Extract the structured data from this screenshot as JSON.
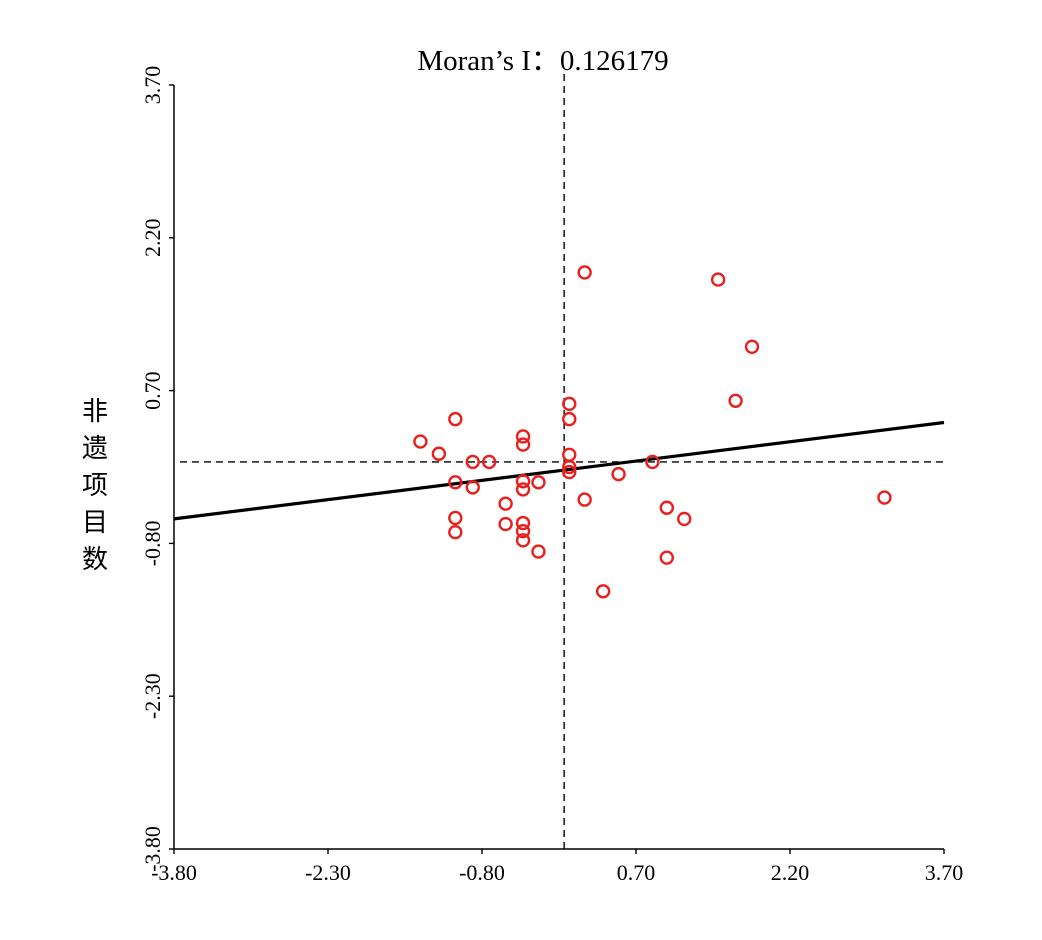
{
  "chart_data": {
    "type": "scatter",
    "title": "Moran’s I：0.126179",
    "ylabel": "非遗项目数",
    "xlabel": "",
    "xlim": [
      -3.8,
      3.7
    ],
    "ylim": [
      -3.8,
      3.7
    ],
    "x_ticks": [
      "-3.80",
      "-2.30",
      "-0.80",
      "0.70",
      "2.20",
      "3.70"
    ],
    "y_ticks": [
      "-3.80",
      "-2.30",
      "-0.80",
      "0.70",
      "2.20",
      "3.70"
    ],
    "x_tick_values": [
      -3.8,
      -2.3,
      -0.8,
      0.7,
      2.2,
      3.7
    ],
    "y_tick_values": [
      -3.8,
      -2.3,
      -0.8,
      0.7,
      2.2,
      3.7
    ],
    "mean_x": 0.0,
    "mean_y": 0.0,
    "fit_line": {
      "slope": 0.126179,
      "intercept": -0.08
    },
    "colors": {
      "points": "#e8201e",
      "line": "#000000",
      "axes": "#000000"
    },
    "points": [
      {
        "x": -1.4,
        "y": 0.2
      },
      {
        "x": -1.22,
        "y": 0.08
      },
      {
        "x": -1.06,
        "y": 0.42
      },
      {
        "x": -1.06,
        "y": -0.2
      },
      {
        "x": -1.06,
        "y": -0.55
      },
      {
        "x": -1.06,
        "y": -0.69
      },
      {
        "x": -0.89,
        "y": 0.0
      },
      {
        "x": -0.89,
        "y": -0.25
      },
      {
        "x": -0.73,
        "y": 0.0
      },
      {
        "x": -0.57,
        "y": -0.41
      },
      {
        "x": -0.57,
        "y": -0.61
      },
      {
        "x": -0.4,
        "y": 0.25
      },
      {
        "x": -0.4,
        "y": 0.17
      },
      {
        "x": -0.4,
        "y": -0.19
      },
      {
        "x": -0.4,
        "y": -0.27
      },
      {
        "x": -0.4,
        "y": -0.6
      },
      {
        "x": -0.4,
        "y": -0.68
      },
      {
        "x": -0.4,
        "y": -0.77
      },
      {
        "x": -0.25,
        "y": -0.2
      },
      {
        "x": -0.25,
        "y": -0.88
      },
      {
        "x": 0.05,
        "y": 0.57
      },
      {
        "x": 0.05,
        "y": 0.42
      },
      {
        "x": 0.05,
        "y": 0.07
      },
      {
        "x": 0.05,
        "y": -0.05
      },
      {
        "x": 0.05,
        "y": -0.1
      },
      {
        "x": 0.2,
        "y": 1.86
      },
      {
        "x": 0.2,
        "y": -0.37
      },
      {
        "x": 0.38,
        "y": -1.27
      },
      {
        "x": 0.53,
        "y": -0.12
      },
      {
        "x": 0.86,
        "y": 0.0
      },
      {
        "x": 1.0,
        "y": -0.45
      },
      {
        "x": 1.0,
        "y": -0.94
      },
      {
        "x": 1.17,
        "y": -0.56
      },
      {
        "x": 1.5,
        "y": 1.79
      },
      {
        "x": 1.67,
        "y": 0.6
      },
      {
        "x": 1.83,
        "y": 1.13
      },
      {
        "x": 3.12,
        "y": -0.35
      }
    ]
  }
}
